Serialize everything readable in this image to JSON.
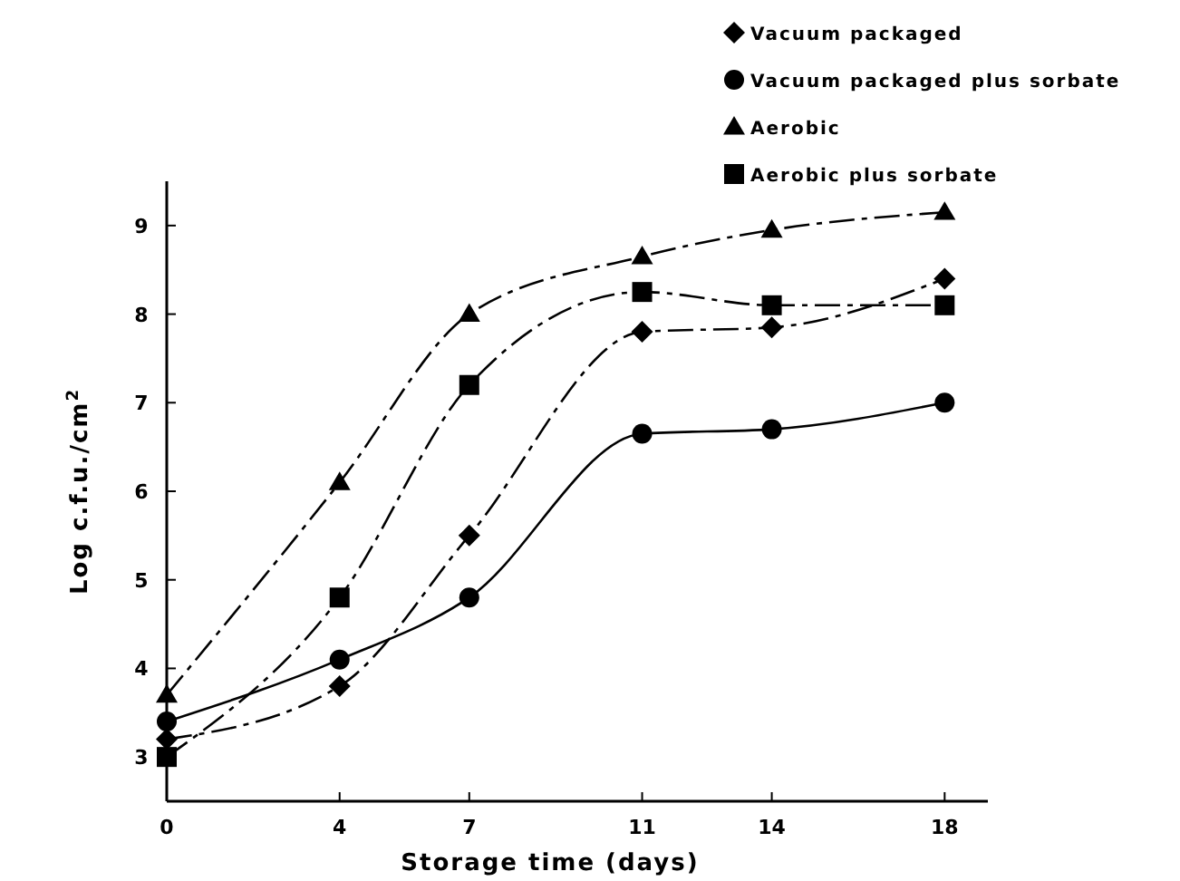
{
  "chart_data": {
    "type": "line",
    "xlabel": "Storage time (days)",
    "ylabel": "Log c.f.u./cm$^{2}$",
    "x": [
      0,
      4,
      7,
      11,
      14,
      18
    ],
    "xlim": [
      0,
      19
    ],
    "xticks": [
      0,
      4,
      7,
      11,
      14,
      18
    ],
    "ylim": [
      2.5,
      9.5
    ],
    "yticks": [
      3,
      4,
      5,
      6,
      7,
      8,
      9
    ],
    "grid": false,
    "legend": "top right",
    "series": [
      {
        "name": "Vacuum packaged",
        "color": "#000000",
        "marker": "diamond",
        "line_style": "dashed",
        "values": [
          3.2,
          3.8,
          5.5,
          7.8,
          7.85,
          8.4
        ]
      },
      {
        "name": "Vacuum packaged plus sorbate",
        "color": "#000000",
        "marker": "circle",
        "line_style": "solid",
        "values": [
          3.4,
          4.1,
          4.8,
          6.65,
          6.7,
          7.0
        ]
      },
      {
        "name": "Aerobic",
        "color": "#000000",
        "marker": "triangle",
        "line_style": "dashed",
        "values": [
          3.7,
          6.1,
          8.0,
          8.65,
          8.95,
          9.15
        ]
      },
      {
        "name": "Aerobic plus sorbate",
        "color": "#000000",
        "marker": "square",
        "line_style": "dashed",
        "values": [
          3.0,
          4.8,
          7.2,
          8.25,
          8.1,
          8.1
        ]
      }
    ]
  }
}
